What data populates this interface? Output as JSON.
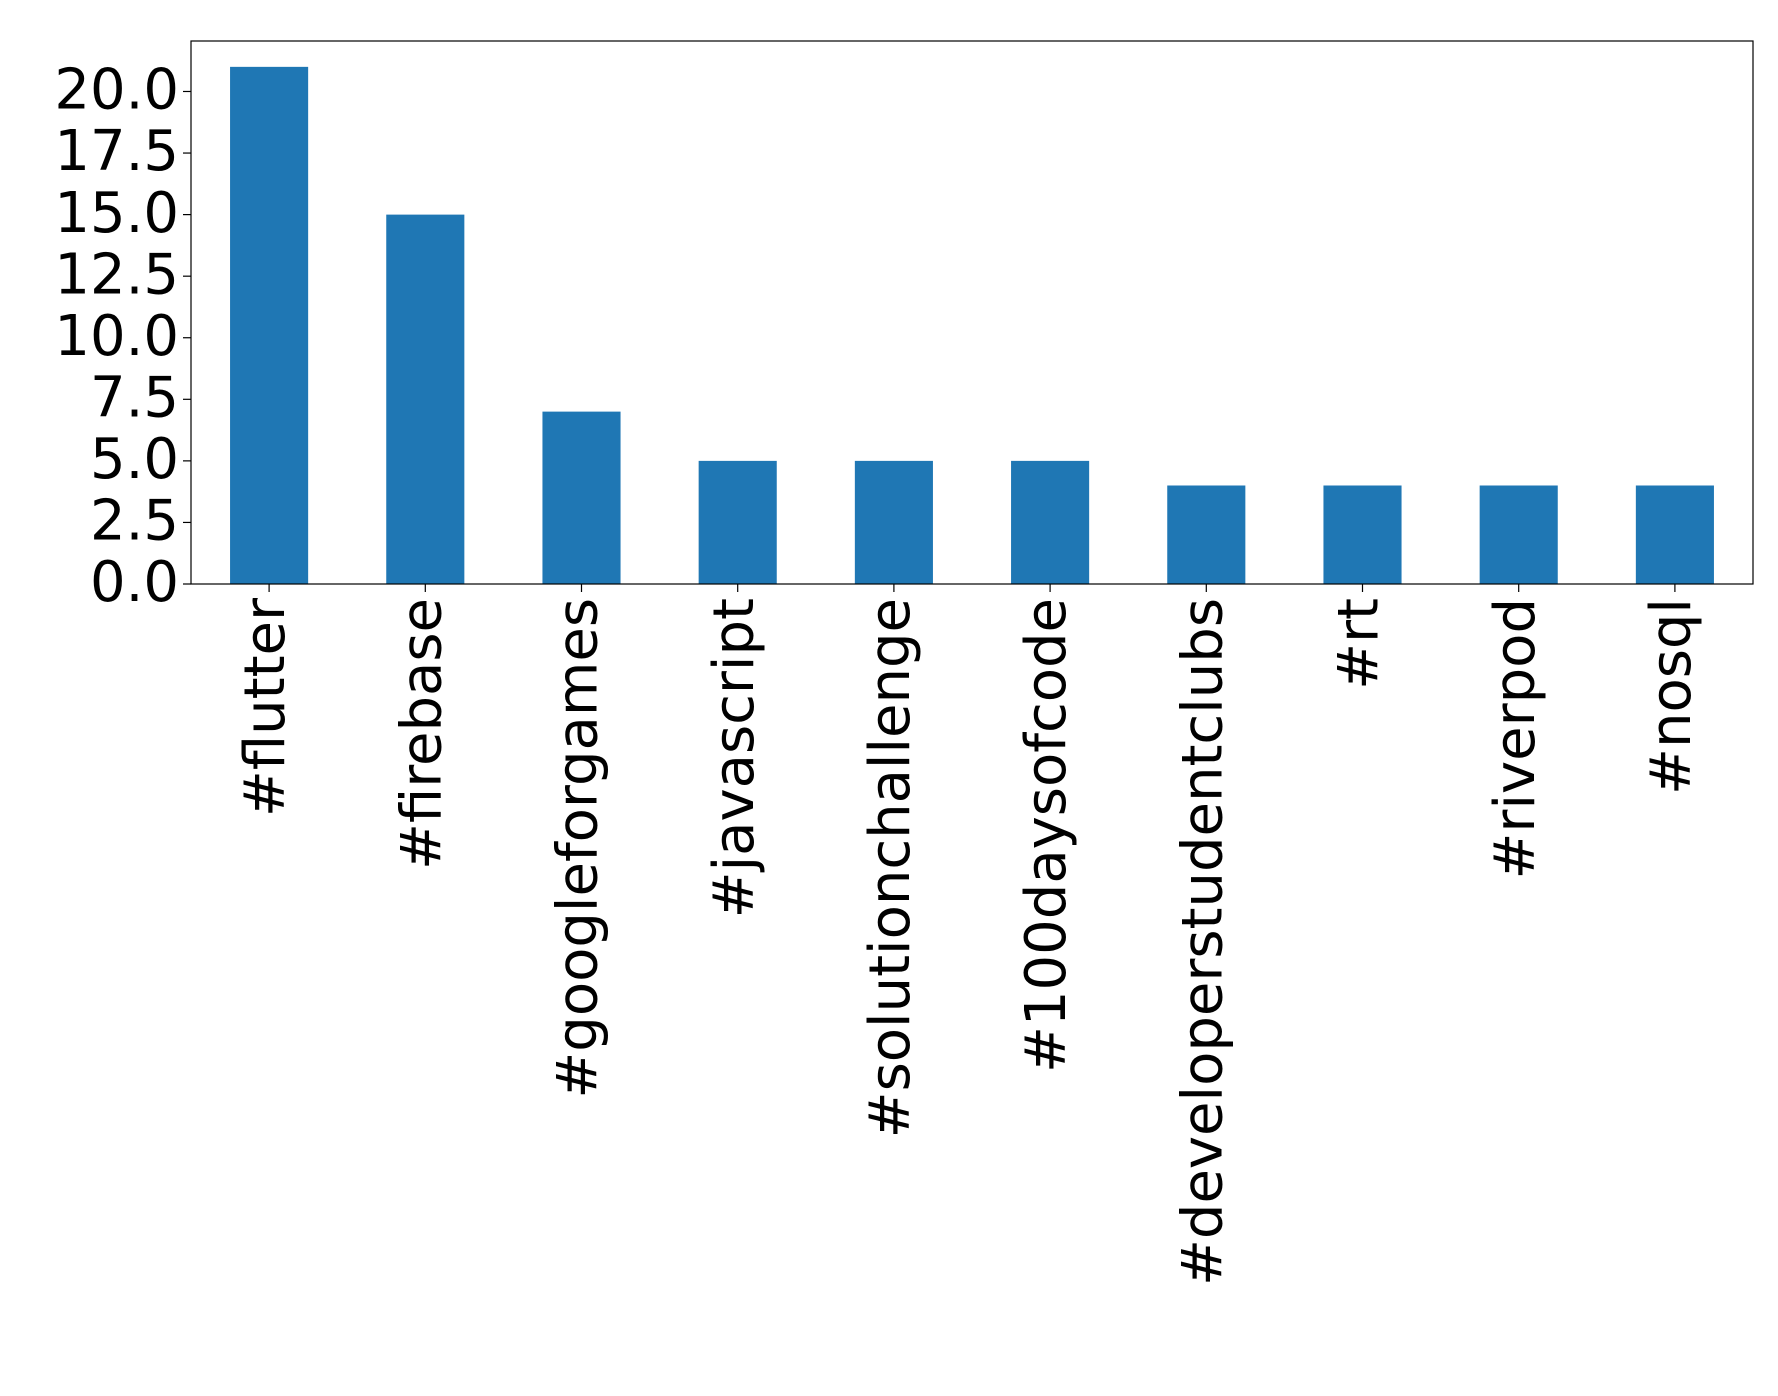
{
  "chart_data": {
    "type": "bar",
    "categories": [
      "#flutter",
      "#firebase",
      "#googleforgames",
      "#javascript",
      "#solutionchallenge",
      "#100daysofcode",
      "#developerstudentclubs",
      "#rt",
      "#riverpod",
      "#nosql"
    ],
    "values": [
      21,
      15,
      7,
      5,
      5,
      5,
      4,
      4,
      4,
      4
    ],
    "color": "#1f77b4",
    "ylim": [
      0,
      22.05
    ],
    "yticks": [
      {
        "value": 0,
        "label": "0.0"
      },
      {
        "value": 2.5,
        "label": "2.5"
      },
      {
        "value": 5,
        "label": "5.0"
      },
      {
        "value": 7.5,
        "label": "7.5"
      },
      {
        "value": 10,
        "label": "10.0"
      },
      {
        "value": 12.5,
        "label": "12.5"
      },
      {
        "value": 15,
        "label": "15.0"
      },
      {
        "value": 17.5,
        "label": "17.5"
      },
      {
        "value": 20,
        "label": "20.0"
      }
    ],
    "grid": false
  }
}
